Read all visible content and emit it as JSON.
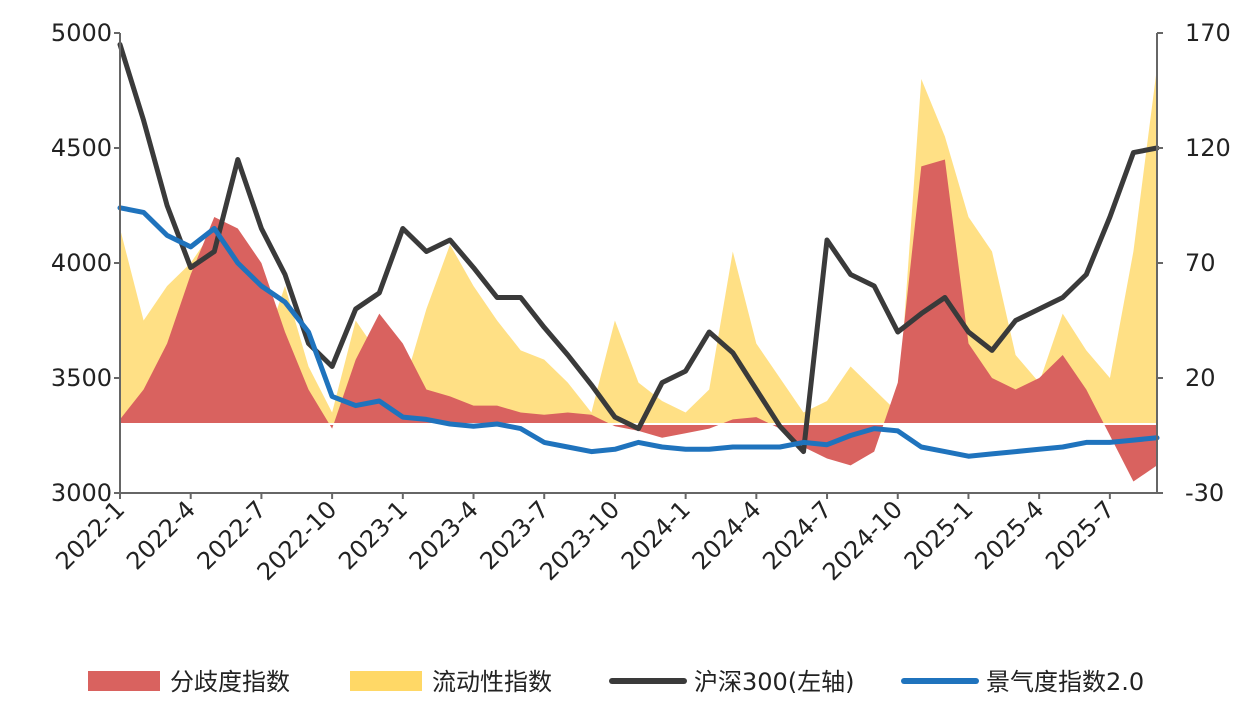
{
  "chart_data": {
    "type": "area",
    "x": [
      "2022-01",
      "2022-02",
      "2022-03",
      "2022-04",
      "2022-05",
      "2022-06",
      "2022-07",
      "2022-08",
      "2022-09",
      "2022-10",
      "2022-11",
      "2022-12",
      "2023-01",
      "2023-02",
      "2023-03",
      "2023-04",
      "2023-05",
      "2023-06",
      "2023-07",
      "2023-08",
      "2023-09",
      "2023-10",
      "2023-11",
      "2023-12",
      "2024-01",
      "2024-02",
      "2024-03",
      "2024-04",
      "2024-05",
      "2024-06",
      "2024-07",
      "2024-08",
      "2024-09",
      "2024-10",
      "2024-11",
      "2024-12",
      "2025-01",
      "2025-02",
      "2025-03",
      "2025-04",
      "2025-05",
      "2025-06",
      "2025-07",
      "2025-08",
      "2025-09"
    ],
    "x_ticks": [
      "2022-1",
      "2022-4",
      "2022-7",
      "2022-10",
      "2023-1",
      "2023-4",
      "2023-7",
      "2023-10",
      "2024-1",
      "2024-4",
      "2024-7",
      "2024-10",
      "2025-1",
      "2025-4",
      "2025-7"
    ],
    "left_axis": {
      "ticks": [
        "3000",
        "3500",
        "4000",
        "4500",
        "5000"
      ],
      "range": [
        3000,
        5000
      ]
    },
    "right_axis": {
      "ticks": [
        "-30",
        "20",
        "70",
        "120",
        "170"
      ],
      "range": [
        -30,
        170
      ]
    },
    "series": [
      {
        "name": "分歧度指数",
        "axis": "right",
        "kind": "area",
        "color": "#D9625F",
        "values": [
          2,
          15,
          35,
          65,
          90,
          85,
          70,
          40,
          15,
          -2,
          28,
          48,
          35,
          15,
          12,
          8,
          8,
          5,
          4,
          5,
          4,
          -1,
          -3,
          -6,
          -4,
          -2,
          2,
          3,
          -2,
          -10,
          -15,
          -18,
          -12,
          18,
          112,
          115,
          35,
          20,
          15,
          20,
          30,
          15,
          -5,
          -25,
          -18
        ]
      },
      {
        "name": "流动性指数",
        "axis": "right",
        "kind": "area",
        "color": "#FFD866",
        "values": [
          85,
          45,
          60,
          70,
          85,
          55,
          30,
          60,
          25,
          5,
          45,
          30,
          15,
          50,
          78,
          60,
          45,
          32,
          28,
          18,
          5,
          45,
          18,
          10,
          5,
          15,
          75,
          35,
          20,
          5,
          10,
          25,
          15,
          5,
          150,
          125,
          90,
          75,
          30,
          18,
          48,
          32,
          20,
          75,
          155
        ]
      },
      {
        "name": "沪深300(左轴)",
        "axis": "left",
        "kind": "line",
        "color": "#3A3A3A",
        "values": [
          4950,
          4620,
          4250,
          3980,
          4050,
          4450,
          4150,
          3950,
          3650,
          3550,
          3800,
          3870,
          4150,
          4050,
          4100,
          3980,
          3850,
          3850,
          3720,
          3600,
          3470,
          3330,
          3280,
          3480,
          3530,
          3700,
          3610,
          3450,
          3290,
          3180,
          4100,
          3950,
          3900,
          3700,
          3780,
          3850,
          3700,
          3620,
          3750,
          3800,
          3850,
          3950,
          4200,
          4480,
          4500
        ]
      },
      {
        "name": "景气度指数2.0",
        "axis": "left",
        "kind": "line",
        "color": "#1F73BD",
        "values": [
          4240,
          4220,
          4120,
          4070,
          4150,
          4000,
          3900,
          3830,
          3700,
          3420,
          3380,
          3400,
          3330,
          3320,
          3300,
          3290,
          3300,
          3280,
          3220,
          3200,
          3180,
          3190,
          3220,
          3200,
          3190,
          3190,
          3200,
          3200,
          3200,
          3220,
          3210,
          3250,
          3280,
          3270,
          3200,
          3180,
          3160,
          3170,
          3180,
          3190,
          3200,
          3220,
          3220,
          3230,
          3240
        ]
      }
    ],
    "legend_position": "bottom",
    "grid": false
  }
}
